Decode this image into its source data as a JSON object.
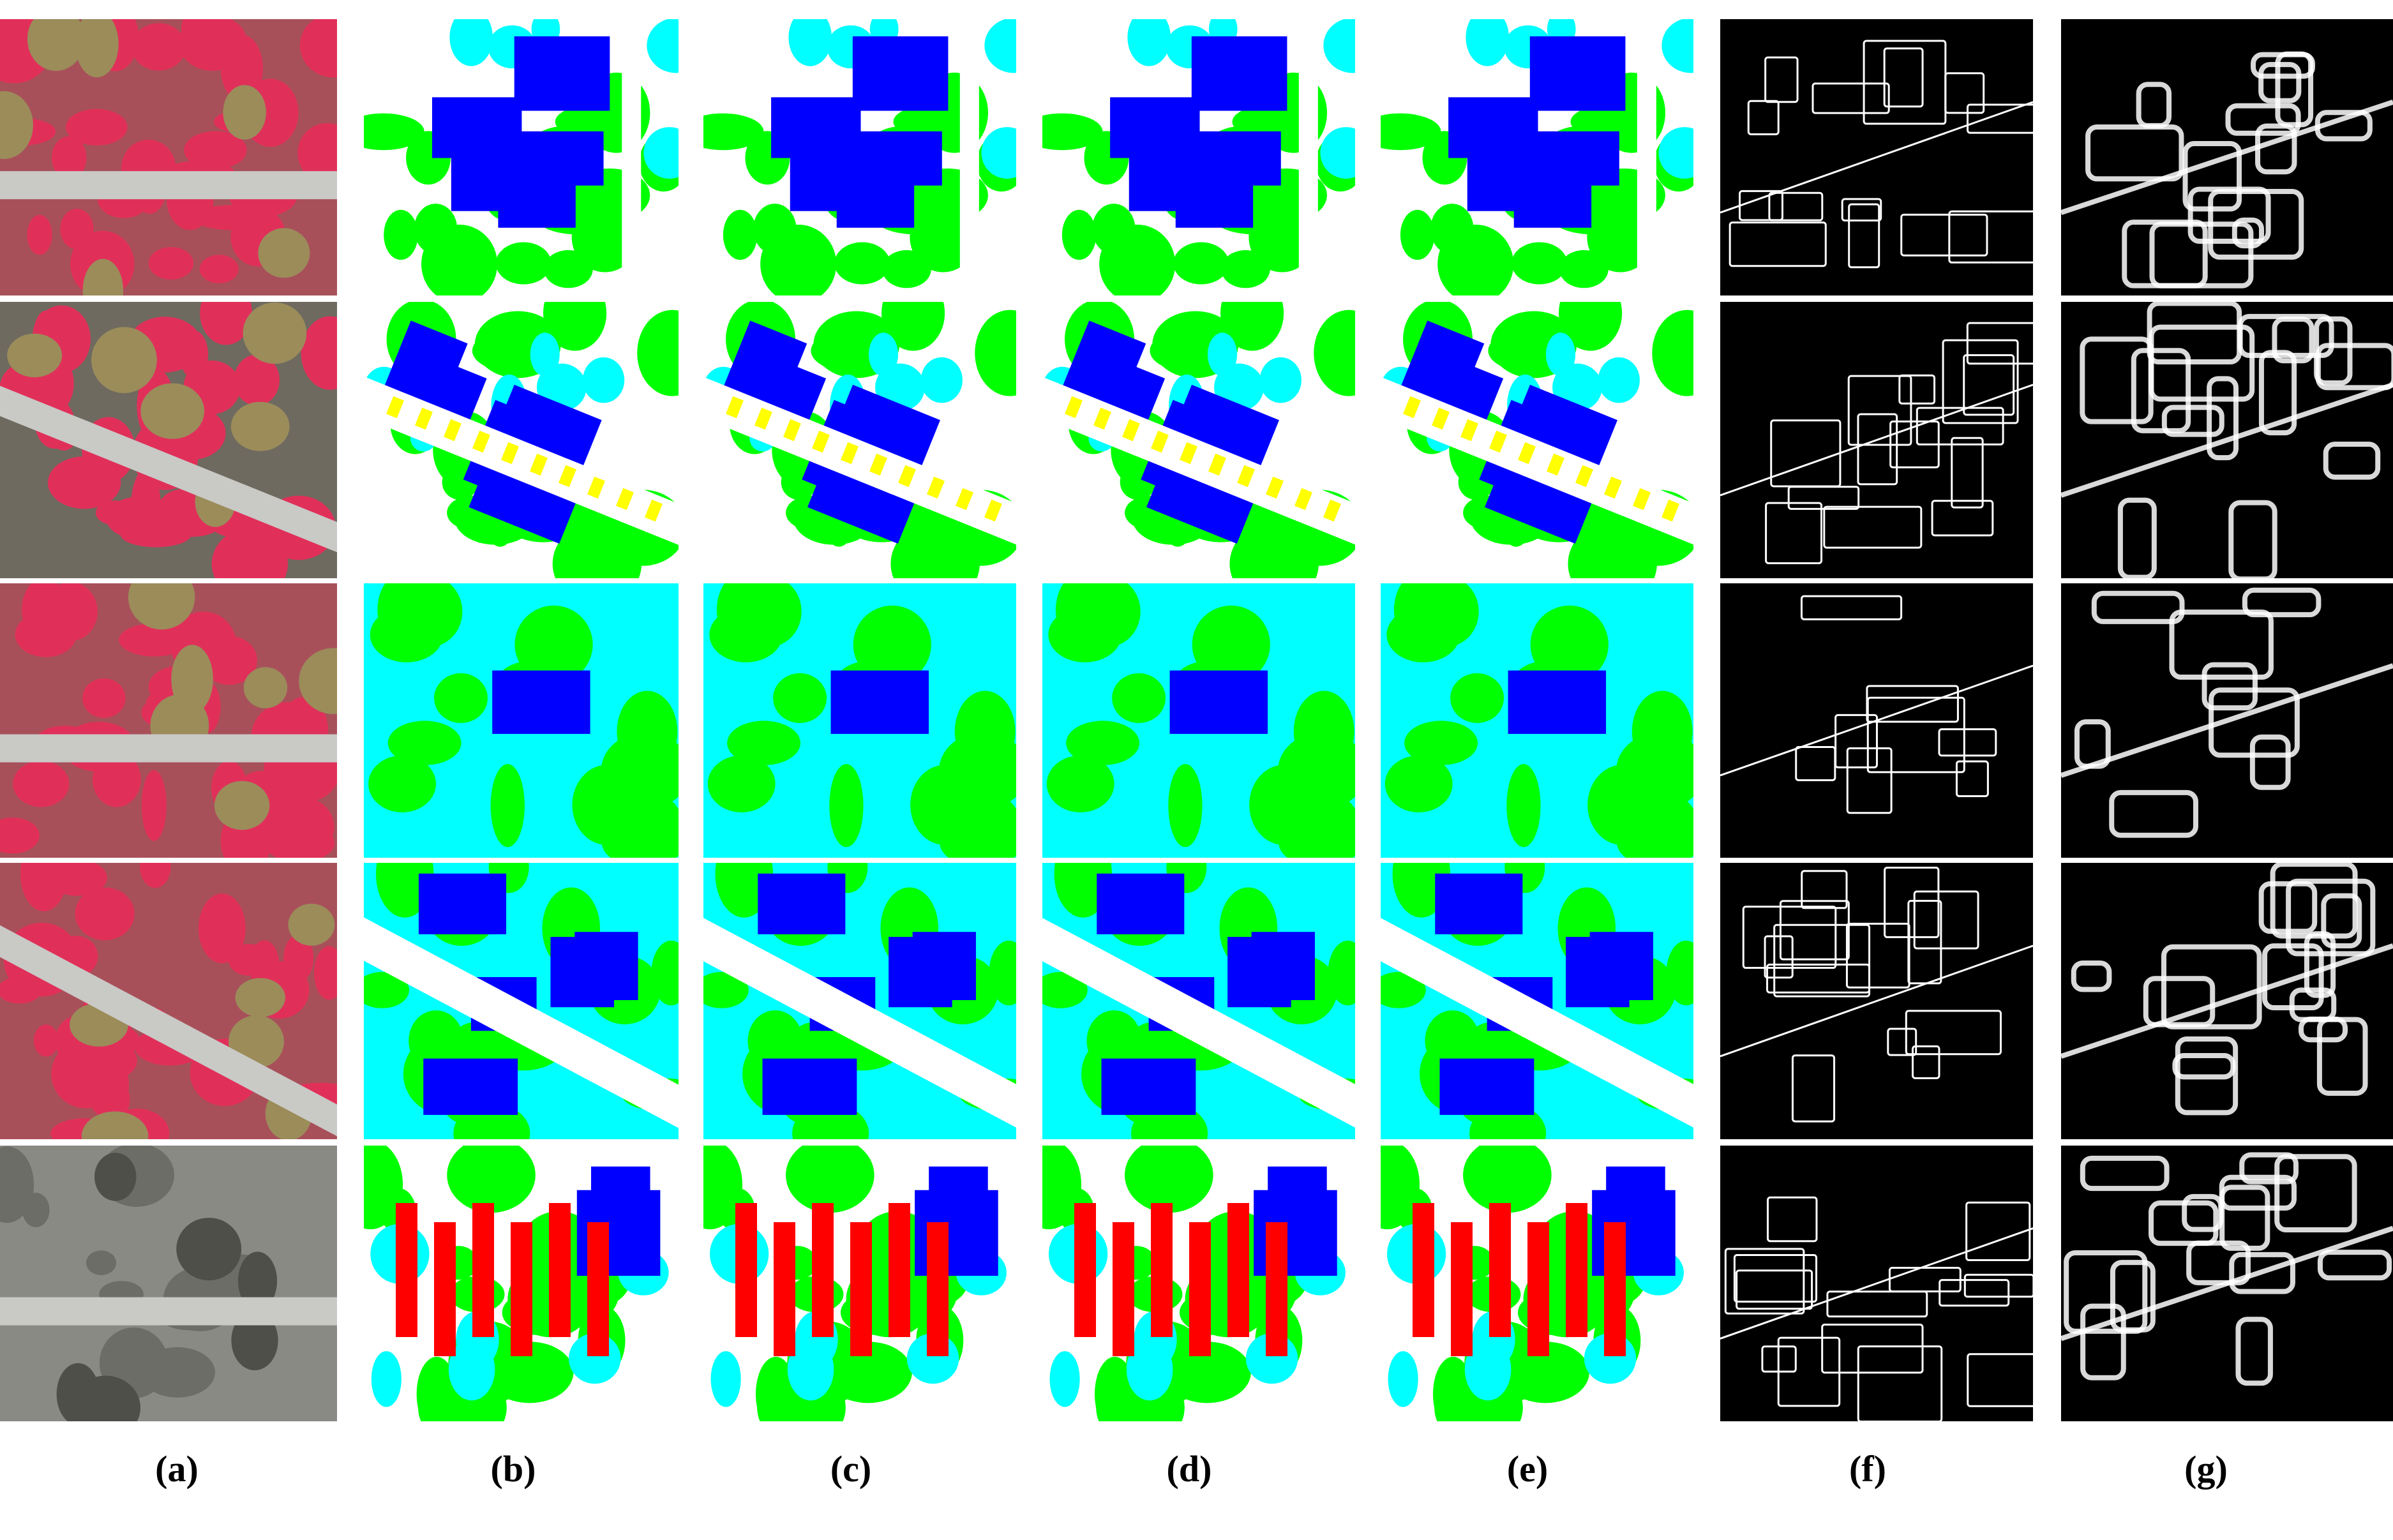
{
  "figure": {
    "column_labels": [
      "(a)",
      "(b)",
      "(c)",
      "(d)",
      "(e)",
      "(f)",
      "(g)"
    ],
    "columns": [
      {
        "label": "(a)",
        "kind": "aerial image (false-color infrared)"
      },
      {
        "label": "(b)",
        "kind": "segmentation map"
      },
      {
        "label": "(c)",
        "kind": "segmentation map"
      },
      {
        "label": "(d)",
        "kind": "segmentation map"
      },
      {
        "label": "(e)",
        "kind": "segmentation map"
      },
      {
        "label": "(f)",
        "kind": "edge map"
      },
      {
        "label": "(g)",
        "kind": "edge map"
      }
    ],
    "row_count": 5,
    "palette": {
      "impervious": "#ffffff",
      "building": "#0000ff",
      "low_vegetation": "#00ffff",
      "tree": "#00ff00",
      "car": "#ffff00",
      "clutter": "#ff0000",
      "background": "#000000"
    }
  }
}
